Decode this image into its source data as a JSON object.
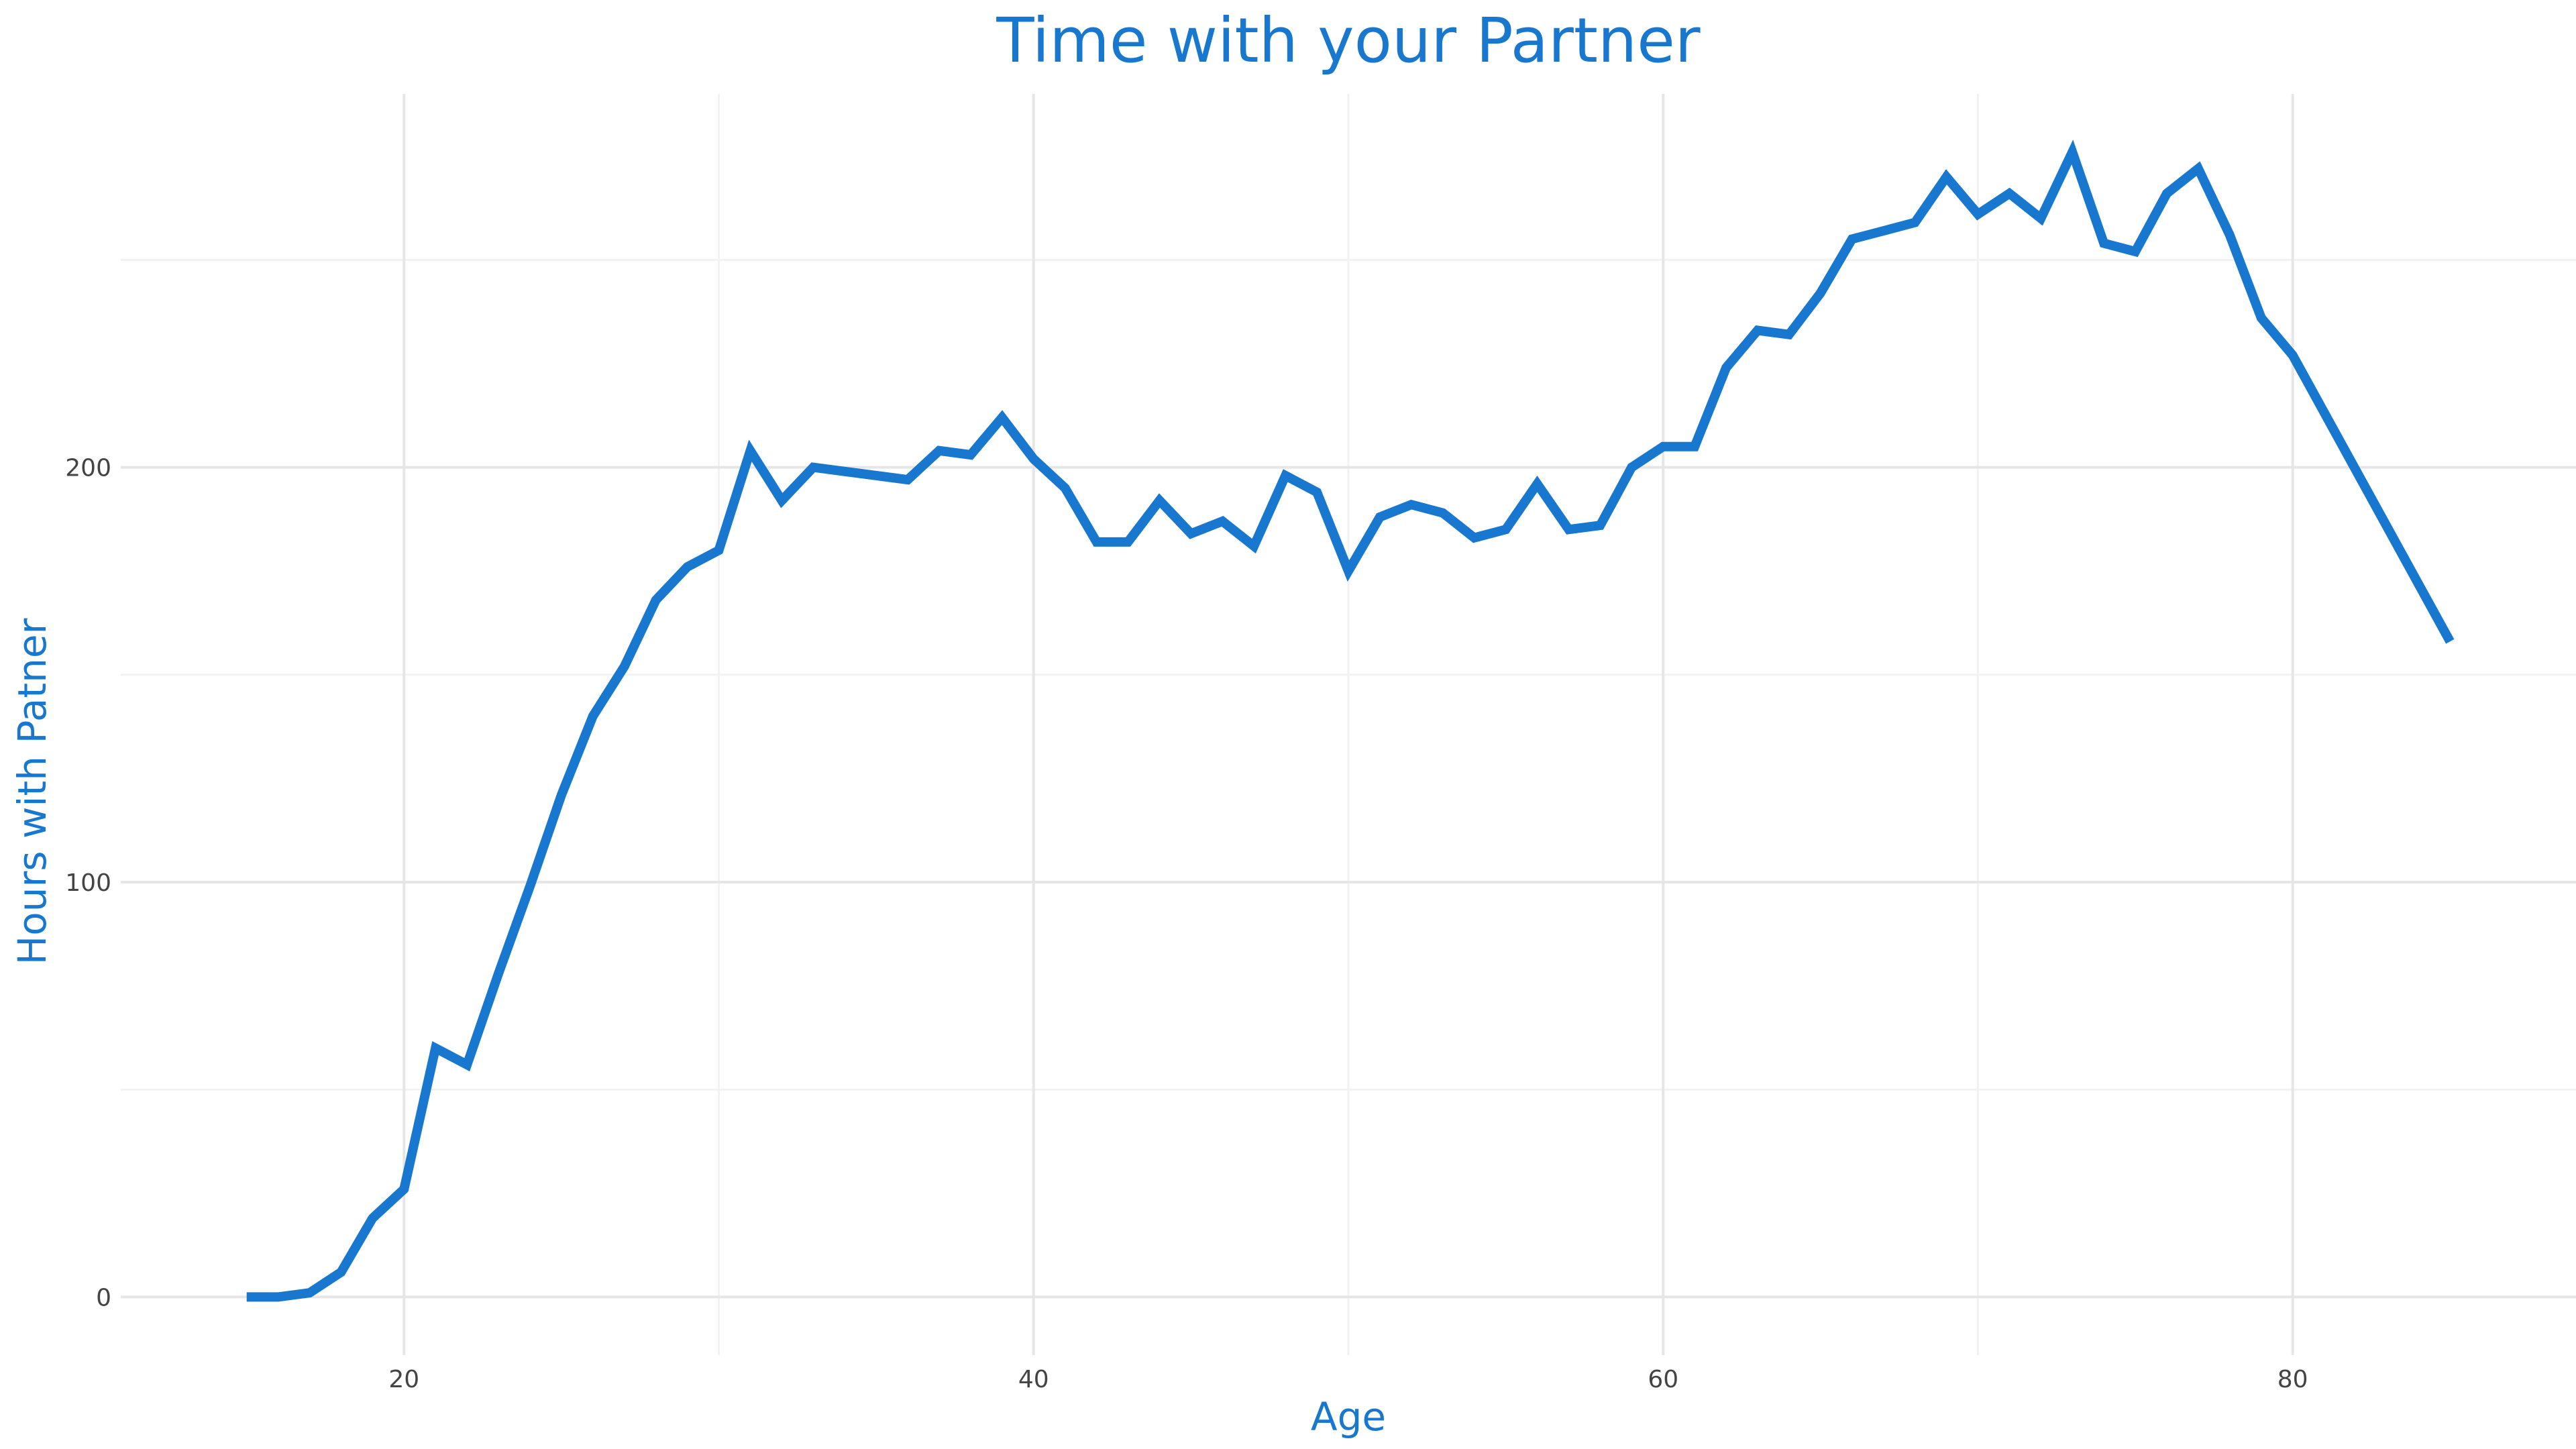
{
  "chart_data": {
    "type": "line",
    "title": "Time with your Partner",
    "xlabel": "Age",
    "ylabel": "Hours with Patner",
    "xlim": [
      11,
      89
    ],
    "ylim": [
      -14,
      290
    ],
    "x_ticks": [
      20,
      40,
      60,
      80
    ],
    "y_ticks": [
      0,
      100,
      200
    ],
    "x_minor": [
      30,
      50,
      70
    ],
    "y_minor": [
      50,
      150,
      250
    ],
    "grid": true,
    "legend": "none",
    "line_color": "#1878cf",
    "title_color": "#1878cf",
    "series": [
      {
        "x": [
          15,
          16,
          17,
          18,
          19,
          20,
          21,
          22,
          23,
          24,
          25,
          26,
          27,
          28,
          29,
          30,
          31,
          32,
          33,
          34,
          35,
          36,
          37,
          38,
          39,
          40,
          41,
          42,
          43,
          44,
          45,
          46,
          47,
          48,
          49,
          50,
          51,
          52,
          53,
          54,
          55,
          56,
          57,
          58,
          59,
          60,
          61,
          62,
          63,
          64,
          65,
          66,
          67,
          68,
          69,
          70,
          71,
          72,
          73,
          74,
          75,
          76,
          77,
          78,
          79,
          80,
          85
        ],
        "values": [
          0,
          0,
          1,
          6,
          19,
          26,
          60,
          56,
          78,
          99,
          121,
          140,
          152,
          168,
          176,
          180,
          204,
          192,
          200,
          199,
          198,
          197,
          204,
          203,
          212,
          202,
          195,
          182,
          182,
          192,
          184,
          187,
          181,
          198,
          194,
          175,
          188,
          191,
          189,
          183,
          185,
          196,
          185,
          186,
          200,
          205,
          205,
          224,
          233,
          232,
          242,
          255,
          257,
          259,
          270,
          261,
          266,
          260,
          276,
          254,
          252,
          266,
          272,
          256,
          236,
          227,
          158
        ]
      }
    ]
  }
}
